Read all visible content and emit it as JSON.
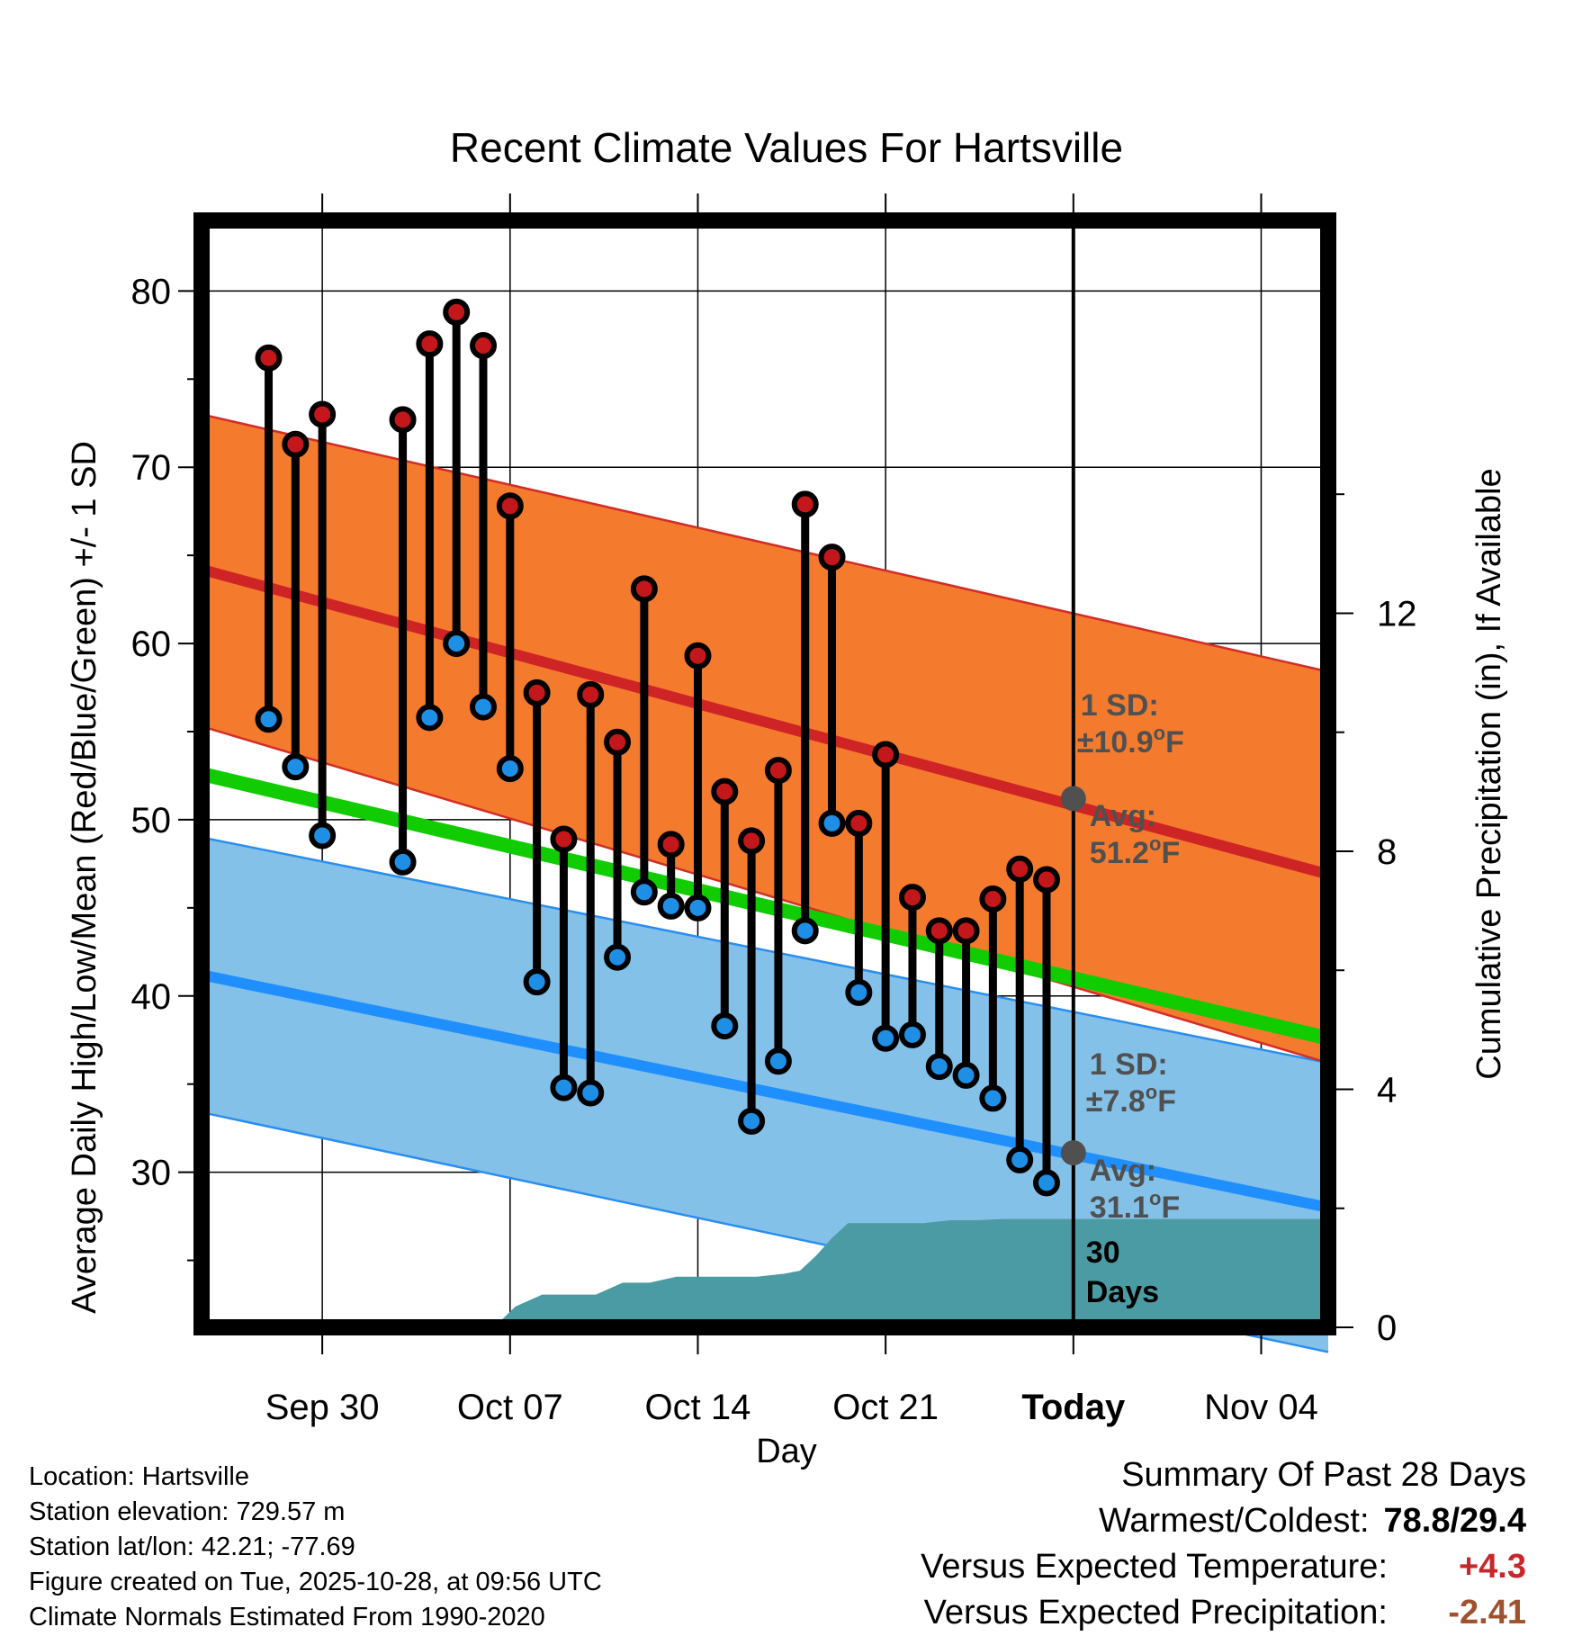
{
  "chart_data": {
    "type": "line",
    "title": "Recent Climate Values For Hartsville",
    "xlabel": "Day",
    "ylabel": "Average Daily High/Low/Mean (Red/Blue/Green) +/- 1 SD",
    "y2label": "Cumulative Precipitation (in), If Available",
    "ylim": [
      21.2,
      84.0
    ],
    "y2lim": [
      0,
      18.6
    ],
    "x_range_days": [
      -32.5,
      9.5
    ],
    "y_ticks": [
      30,
      40,
      50,
      60,
      70,
      80
    ],
    "y_ticks_labels": [
      "30",
      "40",
      "50",
      "60",
      "70",
      "80"
    ],
    "y2_ticks": [
      0,
      4,
      8,
      12
    ],
    "y2_ticks_labels": [
      "0",
      "4",
      "8",
      "12"
    ],
    "x_ticks": [
      {
        "day": -28,
        "label": "Sep 30",
        "bold": false
      },
      {
        "day": -21,
        "label": "Oct 07",
        "bold": false
      },
      {
        "day": -14,
        "label": "Oct 14",
        "bold": false
      },
      {
        "day": -7,
        "label": "Oct 21",
        "bold": false
      },
      {
        "day": 0,
        "label": "Today",
        "bold": true
      },
      {
        "day": 7,
        "label": "Nov 04",
        "bold": false
      }
    ],
    "normals": {
      "high_mean": {
        "start": 64.2,
        "end": 46.9
      },
      "high_upper": {
        "start": 73.0,
        "end": 58.4
      },
      "high_lower": {
        "start": 55.3,
        "end": 36.2
      },
      "low_mean": {
        "start": 41.2,
        "end": 28.0
      },
      "low_upper": {
        "start": 49.0,
        "end": 36.2
      },
      "low_lower": {
        "start": 33.4,
        "end": 19.8
      },
      "avg_mean": {
        "start": 52.6,
        "end": 37.6
      }
    },
    "series": [
      {
        "name": "High",
        "color": "#c4171b",
        "days": [
          -30,
          -29,
          -28,
          -25,
          -24,
          -23,
          -22,
          -21,
          -20,
          -19,
          -18,
          -17,
          -16,
          -15,
          -14,
          -13,
          -12,
          -11,
          -10,
          -9,
          -8,
          -7,
          -6,
          -5,
          -4,
          -3,
          -2,
          -1
        ],
        "values": [
          76.2,
          71.3,
          73.0,
          72.7,
          77.0,
          78.8,
          76.9,
          67.8,
          57.2,
          48.9,
          57.1,
          54.4,
          63.1,
          48.6,
          59.3,
          51.6,
          48.8,
          52.8,
          67.9,
          64.9,
          49.8,
          53.7,
          45.6,
          43.7,
          43.7,
          45.5,
          47.2,
          46.6
        ]
      },
      {
        "name": "Low",
        "color": "#1f8fe6",
        "days": [
          -30,
          -29,
          -28,
          -25,
          -24,
          -23,
          -22,
          -21,
          -20,
          -19,
          -18,
          -17,
          -16,
          -15,
          -14,
          -13,
          -12,
          -11,
          -10,
          -9,
          -8,
          -7,
          -6,
          -5,
          -4,
          -3,
          -2,
          -1
        ],
        "values": [
          55.7,
          53.0,
          49.1,
          47.6,
          55.8,
          60.0,
          56.4,
          52.9,
          40.8,
          34.8,
          34.5,
          42.2,
          45.9,
          45.1,
          45.0,
          38.3,
          32.9,
          36.3,
          43.7,
          49.8,
          40.2,
          37.6,
          37.8,
          36.0,
          35.5,
          34.2,
          30.7,
          29.4
        ]
      },
      {
        "name": "Cumulative Precipitation",
        "color": "#4a9ba4",
        "days": [
          -21.6,
          -20.8,
          -19.8,
          -18.8,
          -17.8,
          -16.8,
          -15.8,
          -14.8,
          -13.8,
          -12.8,
          -11.8,
          -10.8,
          -10.2,
          -9.6,
          -9.0,
          -8.4,
          -7.6,
          -6.6,
          -5.6,
          -4.6,
          -3.6,
          -2.6,
          -1.6,
          -0.6,
          0.6,
          1.6,
          2.6,
          3.6,
          4.6,
          5.6,
          6.6,
          7.6,
          8.6,
          9.5
        ],
        "values": [
          0,
          0.35,
          0.55,
          0.55,
          0.55,
          0.75,
          0.75,
          0.85,
          0.85,
          0.85,
          0.85,
          0.9,
          0.95,
          1.2,
          1.5,
          1.75,
          1.75,
          1.75,
          1.75,
          1.8,
          1.8,
          1.82,
          1.82,
          1.82,
          1.82,
          1.82,
          1.82,
          1.82,
          1.82,
          1.82,
          1.82,
          1.82,
          1.82,
          1.82
        ]
      }
    ],
    "annotations": {
      "high_sd_line1": "1 SD:",
      "high_sd_line2": "±10.9",
      "high_avg_line1": "Avg:",
      "high_avg_line2": "51.2",
      "high_avg_value": 51.2,
      "low_sd_line1": "1 SD:",
      "low_sd_line2": "±7.8",
      "low_avg_line1": "Avg:",
      "low_avg_line2": "31.1",
      "low_avg_value": 31.1,
      "degree_symbol": "o",
      "unit_letter": "F",
      "days_line1": "30",
      "days_line2": "Days"
    }
  },
  "colors": {
    "high_band": "#f47b2e",
    "high_band_edge": "#d32d27",
    "high_mean": "#cf2425",
    "low_band": "#84c1e8",
    "low_band_edge": "#2a8ef0",
    "low_mean": "#1f8fff",
    "avg_mean": "#11cc00",
    "precip": "#4a9ba4",
    "marker_high": "#c4171b",
    "marker_low": "#1f8fe6",
    "annotation_marker": "#505050",
    "plus_value": "#c8282a",
    "minus_value": "#a0522d"
  },
  "info": {
    "location": "Location: Hartsville",
    "elevation": "Station elevation: 729.57 m",
    "latlon": "Station lat/lon: 42.21; -77.69",
    "created": "Figure created on Tue, 2025-10-28, at 09:56 UTC",
    "normals": "Climate Normals Estimated From 1990-2020"
  },
  "summary": {
    "heading": "Summary Of Past 28 Days",
    "warm_cold_label": "Warmest/Coldest:",
    "warm_cold_value": "78.8/29.4",
    "temp_label": "Versus Expected Temperature:",
    "temp_value": "+4.3",
    "precip_label": "Versus Expected Precipitation:",
    "precip_value": "-2.41"
  }
}
